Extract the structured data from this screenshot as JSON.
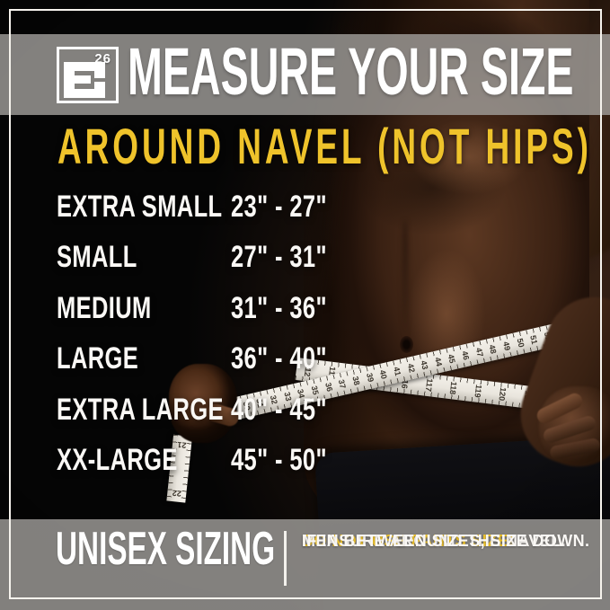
{
  "brand": {
    "logo_letter": "E",
    "logo_superscript": "26"
  },
  "header": {
    "title": "MEASURE YOUR SIZE"
  },
  "measure_heading": "AROUND NAVEL (NOT HIPS)",
  "size_chart": {
    "rows": [
      {
        "label": "EXTRA SMALL",
        "range": "23\" - 27\""
      },
      {
        "label": "SMALL",
        "range": "27\" - 31\""
      },
      {
        "label": "MEDIUM",
        "range": "31\" - 36\""
      },
      {
        "label": "LARGE",
        "range": "36\" - 40\""
      },
      {
        "label": "EXTRA LARGE",
        "range": "40\" - 45\""
      },
      {
        "label": "XX-LARGE",
        "range": "45\" - 50\""
      }
    ]
  },
  "footer": {
    "left_label": "UNISEX SIZING",
    "note_line1": "DO NOT USE PANTS SIZE!",
    "note_line2": "MEASURE AROUND THE NAVEL.",
    "note_line3": "IF IN BETWEEN SIZES, SIZE DOWN."
  },
  "photo": {
    "tape_upper_numbers": [
      "26",
      "27",
      "28",
      "29",
      "30",
      "31",
      "32",
      "33",
      "34",
      "35",
      "36",
      "37",
      "38",
      "39",
      "40",
      "41",
      "42",
      "43",
      "44",
      "45",
      "46",
      "47",
      "48",
      "49",
      "50",
      "51",
      "52",
      "53",
      "54",
      "55",
      "56"
    ],
    "tape_lower_numbers": [
      "112",
      "113",
      "114",
      "115",
      "116",
      "117",
      "118",
      "119",
      "120",
      "121",
      "122",
      "123",
      "124"
    ],
    "tape_end_numbers": [
      "21",
      "22"
    ]
  },
  "colors": {
    "accent_yellow": "#EFC32B",
    "band_gray": "#A3A09C",
    "frame_white": "#F6F3ED",
    "text_white": "#FAF8F5",
    "tape_white": "#E9E5DD"
  }
}
